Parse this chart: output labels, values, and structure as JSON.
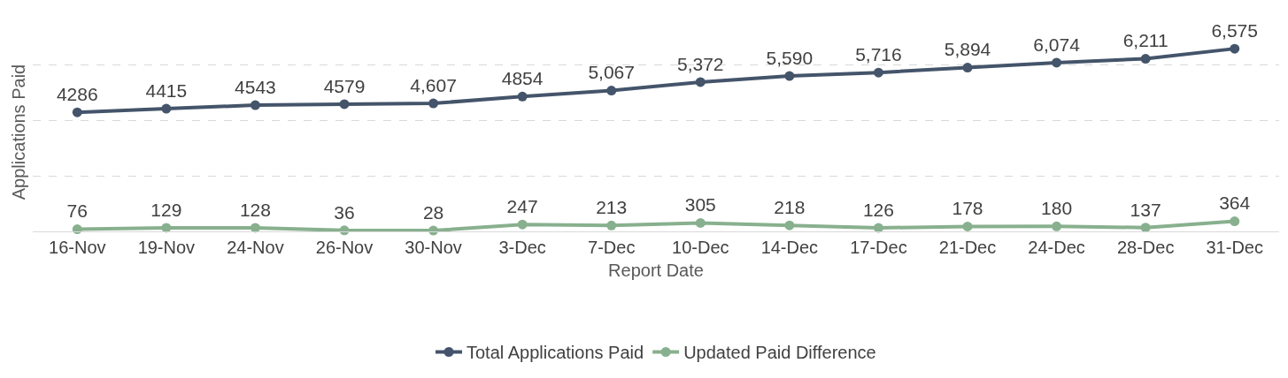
{
  "chart_data": {
    "type": "line",
    "xlabel": "Report Date",
    "ylabel": "Applications Paid",
    "categories": [
      "16-Nov",
      "19-Nov",
      "24-Nov",
      "26-Nov",
      "30-Nov",
      "3-Dec",
      "7-Dec",
      "10-Dec",
      "14-Dec",
      "17-Dec",
      "21-Dec",
      "24-Dec",
      "28-Dec",
      "31-Dec"
    ],
    "series": [
      {
        "name": "Total Applications Paid",
        "color": "#44546a",
        "values": [
          4286,
          4415,
          4543,
          4579,
          4607,
          4854,
          5067,
          5372,
          5590,
          5716,
          5894,
          6074,
          6211,
          6575
        ],
        "value_labels": [
          "4286",
          "4415",
          "4543",
          "4579",
          "4,607",
          "4854",
          "5,067",
          "5,372",
          "5,590",
          "5,716",
          "5,894",
          "6,074",
          "6,211",
          "6,575"
        ]
      },
      {
        "name": "Updated Paid Difference",
        "color": "#88b08e",
        "values": [
          76,
          129,
          128,
          36,
          28,
          247,
          213,
          305,
          218,
          126,
          178,
          180,
          137,
          364
        ],
        "value_labels": [
          "76",
          "129",
          "128",
          "36",
          "28",
          "247",
          "213",
          "305",
          "218",
          "126",
          "178",
          "180",
          "137",
          "364"
        ]
      }
    ],
    "tick_labels": "x",
    "grid": "y",
    "legend": "bottom",
    "marker": "circle",
    "line_style": "solid"
  }
}
